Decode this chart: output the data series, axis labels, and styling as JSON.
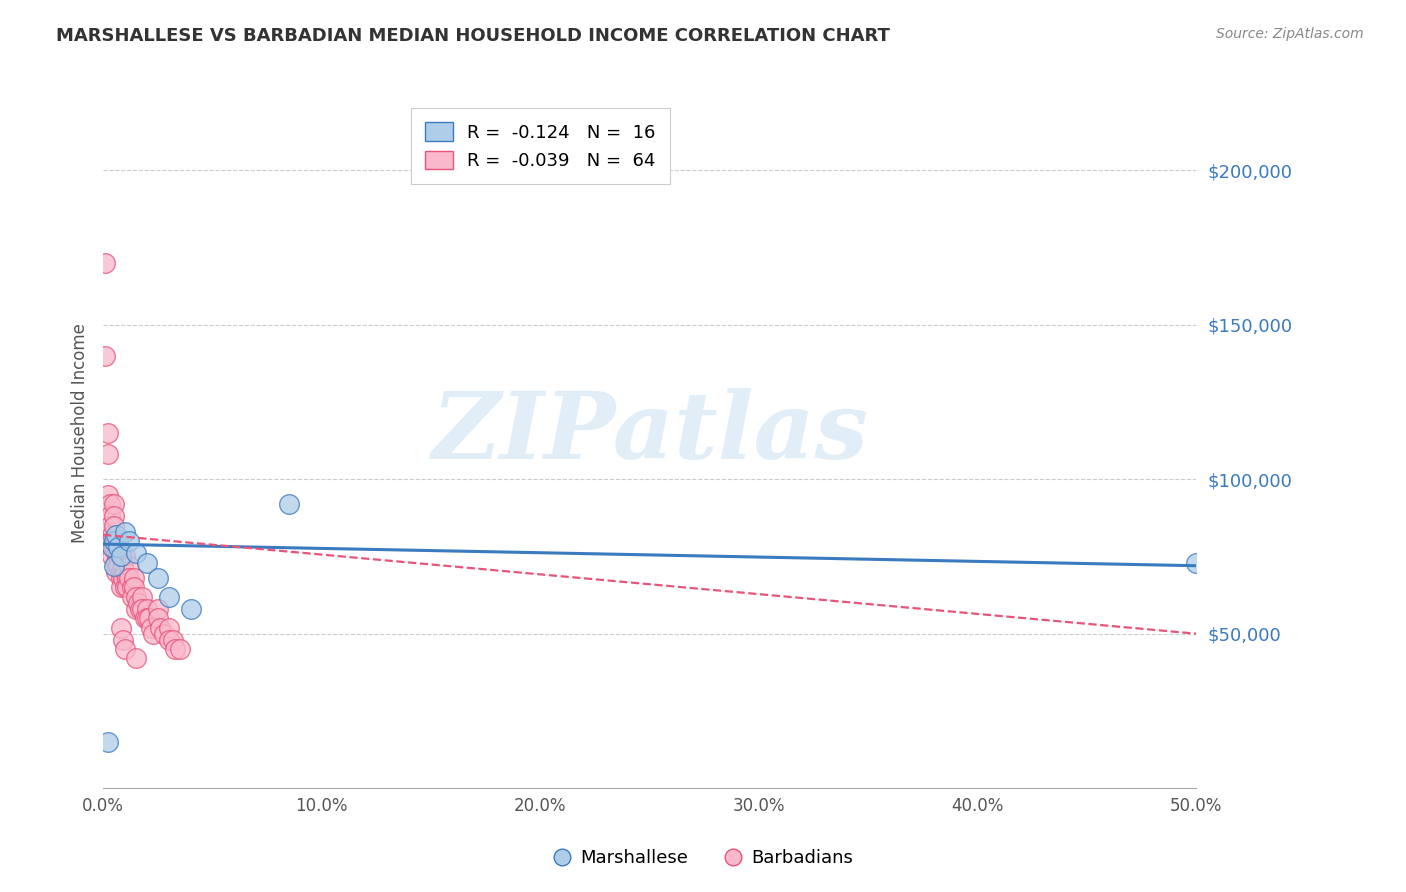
{
  "title": "MARSHALLESE VS BARBADIAN MEDIAN HOUSEHOLD INCOME CORRELATION CHART",
  "source": "Source: ZipAtlas.com",
  "ylabel": "Median Household Income",
  "xlim": [
    0.0,
    0.5
  ],
  "ylim": [
    0,
    230000
  ],
  "xticks": [
    0.0,
    0.1,
    0.2,
    0.3,
    0.4,
    0.5
  ],
  "xtick_labels": [
    "0.0%",
    "10.0%",
    "20.0%",
    "30.0%",
    "40.0%",
    "50.0%"
  ],
  "yticks_right": [
    50000,
    100000,
    150000,
    200000
  ],
  "ytick_labels_right": [
    "$50,000",
    "$100,000",
    "$150,000",
    "$200,000"
  ],
  "blue_fill": "#aecde8",
  "pink_fill": "#f9b8cb",
  "blue_edge": "#3a7abf",
  "pink_edge": "#e8547a",
  "blue_line_color": "#3a7abf",
  "pink_line_color": "#e8547a",
  "legend_blue_label": "R =  -0.124   N =  16",
  "legend_pink_label": "R =  -0.039   N =  64",
  "marshallese_label": "Marshallese",
  "barbadians_label": "Barbadians",
  "watermark": "ZIPatlas",
  "blue_trend_x": [
    0.0,
    0.5
  ],
  "blue_trend_y": [
    79000,
    72000
  ],
  "pink_trend_x": [
    0.0,
    0.5
  ],
  "pink_trend_y": [
    82000,
    50000
  ],
  "blue_scatter_x": [
    0.002,
    0.004,
    0.005,
    0.005,
    0.006,
    0.007,
    0.008,
    0.01,
    0.012,
    0.015,
    0.02,
    0.025,
    0.03,
    0.04,
    0.085,
    0.5
  ],
  "blue_scatter_y": [
    15000,
    78000,
    80000,
    72000,
    82000,
    78000,
    75000,
    83000,
    80000,
    76000,
    73000,
    68000,
    62000,
    58000,
    92000,
    73000
  ],
  "pink_scatter_x": [
    0.001,
    0.001,
    0.002,
    0.002,
    0.002,
    0.003,
    0.003,
    0.003,
    0.004,
    0.004,
    0.004,
    0.004,
    0.005,
    0.005,
    0.005,
    0.005,
    0.005,
    0.006,
    0.006,
    0.006,
    0.007,
    0.007,
    0.007,
    0.008,
    0.008,
    0.008,
    0.009,
    0.009,
    0.01,
    0.01,
    0.01,
    0.011,
    0.011,
    0.012,
    0.012,
    0.013,
    0.013,
    0.014,
    0.014,
    0.015,
    0.015,
    0.016,
    0.017,
    0.018,
    0.018,
    0.019,
    0.02,
    0.02,
    0.021,
    0.022,
    0.023,
    0.025,
    0.025,
    0.026,
    0.028,
    0.03,
    0.03,
    0.032,
    0.033,
    0.035,
    0.008,
    0.009,
    0.01,
    0.015
  ],
  "pink_scatter_y": [
    170000,
    140000,
    115000,
    108000,
    95000,
    92000,
    88000,
    85000,
    82000,
    80000,
    78000,
    75000,
    92000,
    88000,
    85000,
    80000,
    78000,
    76000,
    73000,
    70000,
    80000,
    75000,
    72000,
    70000,
    68000,
    65000,
    72000,
    68000,
    75000,
    70000,
    65000,
    68000,
    65000,
    72000,
    68000,
    65000,
    62000,
    68000,
    65000,
    62000,
    58000,
    60000,
    58000,
    62000,
    58000,
    55000,
    58000,
    55000,
    55000,
    52000,
    50000,
    58000,
    55000,
    52000,
    50000,
    52000,
    48000,
    48000,
    45000,
    45000,
    52000,
    48000,
    45000,
    42000
  ]
}
